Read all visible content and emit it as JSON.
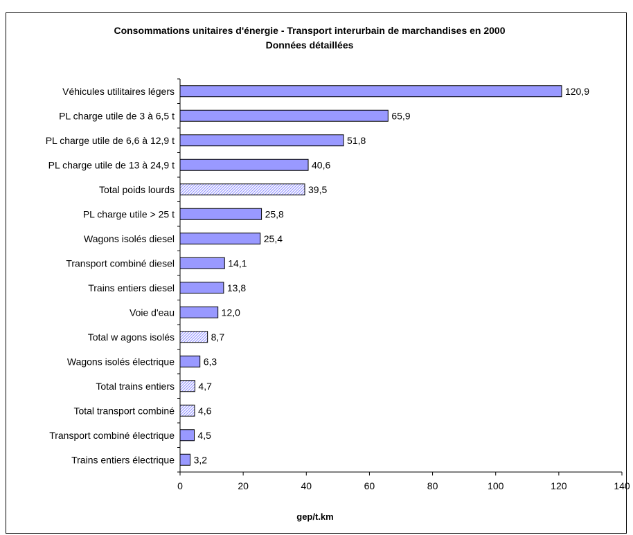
{
  "chart_data": {
    "type": "bar",
    "orientation": "horizontal",
    "title": "Consommations unitaires d'énergie - Transport interurbain de marchandises en 2000",
    "subtitle": "Données détaillées",
    "xlabel": "gep/t.km",
    "ylabel": "",
    "xlim": [
      0,
      140
    ],
    "xticks": [
      0,
      20,
      40,
      60,
      80,
      100,
      120,
      140
    ],
    "grid": false,
    "legend": "none",
    "colors": {
      "solid_fill": "#9999ff",
      "hatch_fill": "#9999ff",
      "hatch_background": "#ffffff",
      "bar_border": "#000000"
    },
    "bars": [
      {
        "category": "Véhicules utilitaires légers",
        "value": 120.9,
        "label": "120,9",
        "style": "solid"
      },
      {
        "category": "PL charge utile de 3 à 6,5 t",
        "value": 65.9,
        "label": "65,9",
        "style": "solid"
      },
      {
        "category": "PL charge utile de 6,6 à 12,9 t",
        "value": 51.8,
        "label": "51,8",
        "style": "solid"
      },
      {
        "category": "PL charge utile de 13 à 24,9 t",
        "value": 40.6,
        "label": "40,6",
        "style": "solid"
      },
      {
        "category": "Total poids lourds",
        "value": 39.5,
        "label": "39,5",
        "style": "hatched"
      },
      {
        "category": "PL charge utile > 25 t",
        "value": 25.8,
        "label": "25,8",
        "style": "solid"
      },
      {
        "category": "Wagons isolés diesel",
        "value": 25.4,
        "label": "25,4",
        "style": "solid"
      },
      {
        "category": "Transport combiné diesel",
        "value": 14.1,
        "label": "14,1",
        "style": "solid"
      },
      {
        "category": "Trains entiers diesel",
        "value": 13.8,
        "label": "13,8",
        "style": "solid"
      },
      {
        "category": "Voie d'eau",
        "value": 12.0,
        "label": "12,0",
        "style": "solid"
      },
      {
        "category": "Total w agons isolés",
        "value": 8.7,
        "label": "8,7",
        "style": "hatched"
      },
      {
        "category": "Wagons isolés électrique",
        "value": 6.3,
        "label": "6,3",
        "style": "solid"
      },
      {
        "category": "Total trains entiers",
        "value": 4.7,
        "label": "4,7",
        "style": "hatched"
      },
      {
        "category": "Total transport combiné",
        "value": 4.6,
        "label": "4,6",
        "style": "hatched"
      },
      {
        "category": "Transport combiné électrique",
        "value": 4.5,
        "label": "4,5",
        "style": "solid"
      },
      {
        "category": "Trains entiers électrique",
        "value": 3.2,
        "label": "3,2",
        "style": "solid"
      }
    ]
  }
}
